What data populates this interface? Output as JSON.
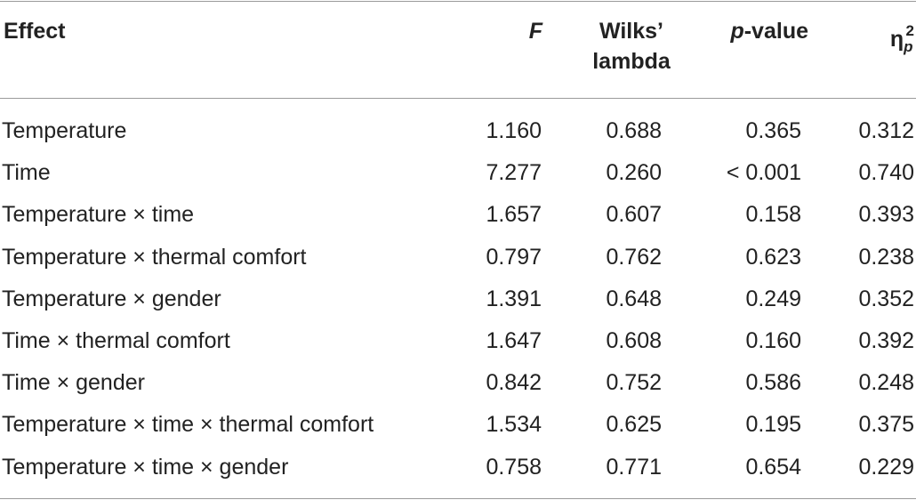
{
  "table": {
    "headers": {
      "effect": "Effect",
      "f": "F",
      "wilks_line1": "Wilks’",
      "wilks_line2": "lambda",
      "p_italic": "p",
      "p_rest": "-value",
      "eta": "η",
      "eta_sub": "p",
      "eta_sup": "2"
    },
    "rows": [
      {
        "effect": "Temperature",
        "f": "1.160",
        "wilks": "0.688",
        "p": "0.365",
        "eta": "0.312"
      },
      {
        "effect": "Time",
        "f": "7.277",
        "wilks": "0.260",
        "p": "< 0.001",
        "eta": "0.740"
      },
      {
        "effect": "Temperature × time",
        "f": "1.657",
        "wilks": "0.607",
        "p": "0.158",
        "eta": "0.393"
      },
      {
        "effect": "Temperature × thermal comfort",
        "f": "0.797",
        "wilks": "0.762",
        "p": "0.623",
        "eta": "0.238"
      },
      {
        "effect": "Temperature × gender",
        "f": "1.391",
        "wilks": "0.648",
        "p": "0.249",
        "eta": "0.352"
      },
      {
        "effect": "Time × thermal comfort",
        "f": "1.647",
        "wilks": "0.608",
        "p": "0.160",
        "eta": "0.392"
      },
      {
        "effect": "Time × gender",
        "f": "0.842",
        "wilks": "0.752",
        "p": "0.586",
        "eta": "0.248"
      },
      {
        "effect": "Temperature × time × thermal comfort",
        "f": "1.534",
        "wilks": "0.625",
        "p": "0.195",
        "eta": "0.375"
      },
      {
        "effect": "Temperature × time × gender",
        "f": "0.758",
        "wilks": "0.771",
        "p": "0.654",
        "eta": "0.229"
      }
    ]
  },
  "colors": {
    "text": "#222222",
    "rule": "#9a9a9a"
  }
}
